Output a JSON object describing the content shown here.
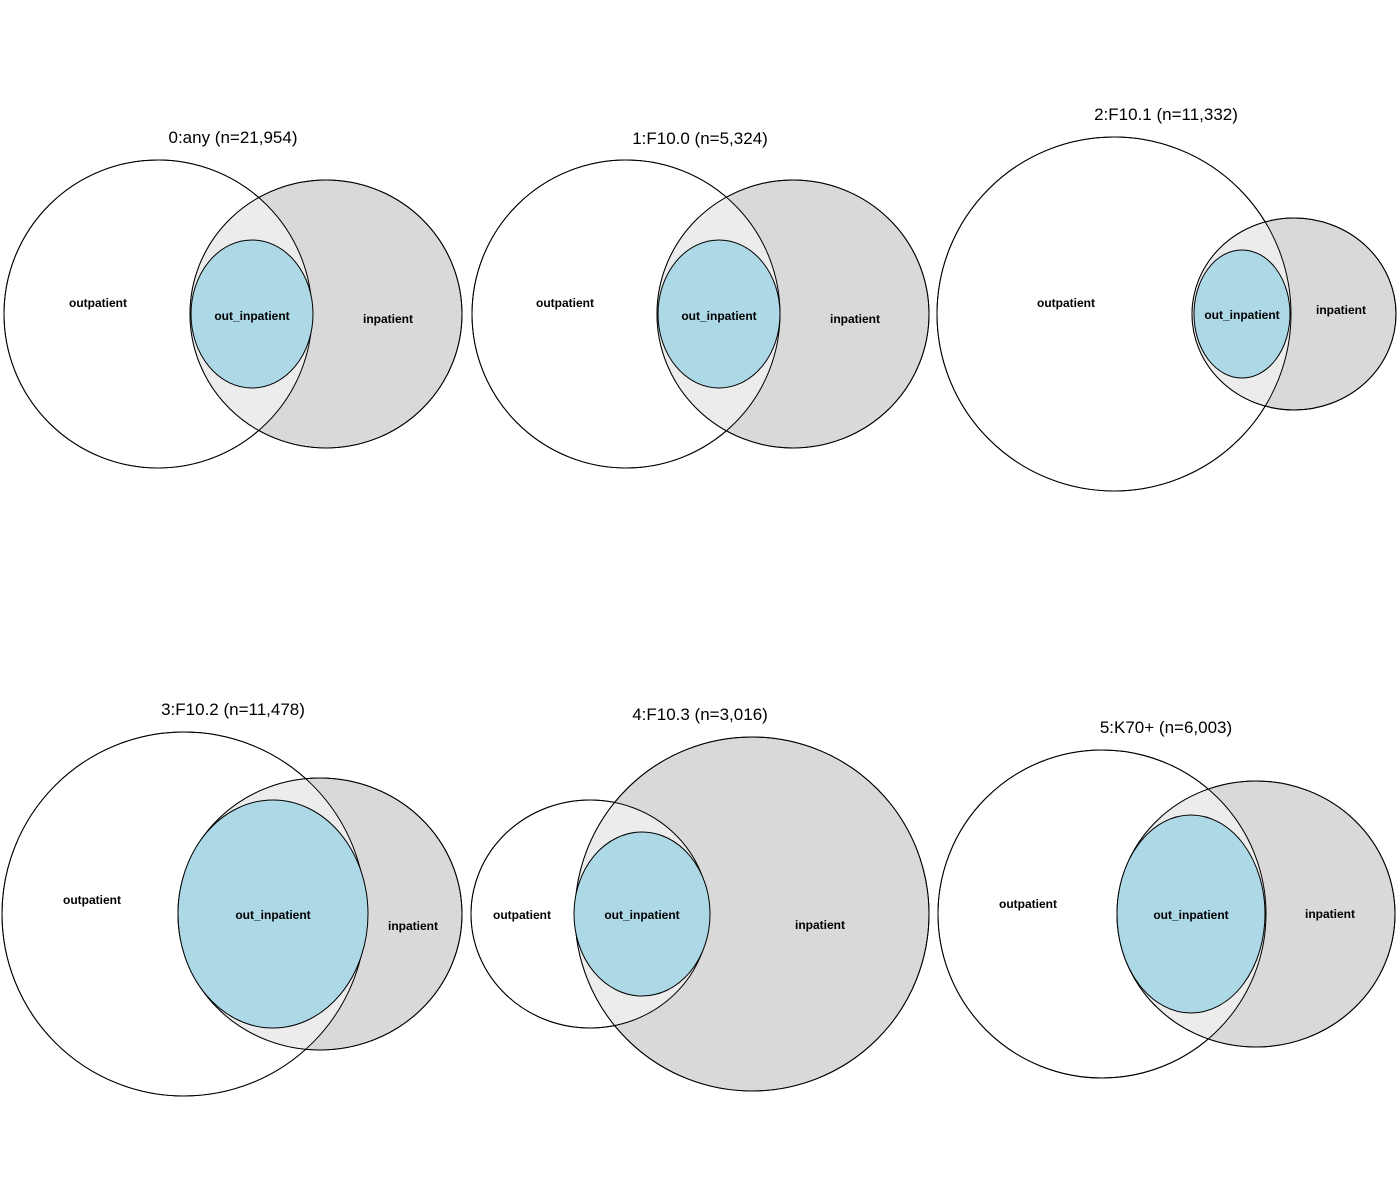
{
  "colors": {
    "outpatient_fill": "#ffffff",
    "inpatient_fill": "#d9d9d9",
    "overlap_fill": "#ececec",
    "out_inpatient_fill": "#add8e6",
    "stroke": "#000000"
  },
  "panels": [
    {
      "title": "0:any (n=21,954)",
      "labels": {
        "outpatient": "outpatient",
        "inpatient": "inpatient",
        "out_inpatient": "out_inpatient"
      }
    },
    {
      "title": "1:F10.0 (n=5,324)",
      "labels": {
        "outpatient": "outpatient",
        "inpatient": "inpatient",
        "out_inpatient": "out_inpatient"
      }
    },
    {
      "title": "2:F10.1 (n=11,332)",
      "labels": {
        "outpatient": "outpatient",
        "inpatient": "inpatient",
        "out_inpatient": "out_inpatient"
      }
    },
    {
      "title": "3:F10.2 (n=11,478)",
      "labels": {
        "outpatient": "outpatient",
        "inpatient": "inpatient",
        "out_inpatient": "out_inpatient"
      }
    },
    {
      "title": "4:F10.3 (n=3,016)",
      "labels": {
        "outpatient": "outpatient",
        "inpatient": "inpatient",
        "out_inpatient": "out_inpatient"
      }
    },
    {
      "title": "5:K70+ (n=6,003)",
      "labels": {
        "outpatient": "outpatient",
        "inpatient": "inpatient",
        "out_inpatient": "out_inpatient"
      }
    }
  ]
}
